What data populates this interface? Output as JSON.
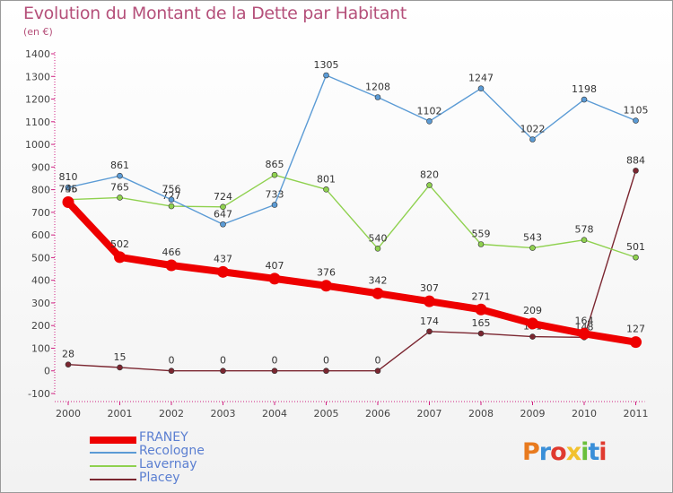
{
  "header": {
    "title": "Evolution du Montant de la Dette par Habitant",
    "subtitle": "(en €)"
  },
  "logo": {
    "text": "Proxiti",
    "colors": [
      "#e87a1e",
      "#3a8fd8",
      "#e03a2f",
      "#f2c12e",
      "#6bbf3a",
      "#3a8fd8",
      "#e03a2f"
    ]
  },
  "chart_data": {
    "type": "line",
    "categories": [
      "2000",
      "2001",
      "2002",
      "2003",
      "2004",
      "2005",
      "2006",
      "2007",
      "2008",
      "2009",
      "2010",
      "2011"
    ],
    "ylim": [
      -100,
      1400
    ],
    "yticks": [
      -100,
      0,
      100,
      200,
      300,
      400,
      500,
      600,
      700,
      800,
      900,
      1000,
      1100,
      1200,
      1300,
      1400
    ],
    "grid": false,
    "legend_position": "bottom-left",
    "series": [
      {
        "name": "Placey",
        "color": "#7b2630",
        "values": [
          28,
          15,
          0,
          0,
          0,
          0,
          0,
          174,
          165,
          151,
          148,
          884
        ],
        "labels": [
          "28",
          "15",
          "0",
          "0",
          "0",
          "0",
          "0",
          "174",
          "165",
          "151",
          "148",
          "884"
        ]
      },
      {
        "name": "Lavernay",
        "color": "#8fd14f",
        "values": [
          756,
          765,
          727,
          724,
          865,
          801,
          540,
          820,
          559,
          543,
          578,
          501
        ],
        "labels": [
          "756",
          "765",
          "727",
          "724",
          "865",
          "801",
          "540",
          "820",
          "559",
          "543",
          "578",
          "501"
        ]
      },
      {
        "name": "Recologne",
        "color": "#5b9bd5",
        "values": [
          810,
          861,
          756,
          647,
          733,
          1305,
          1208,
          1102,
          1247,
          1022,
          1198,
          1105
        ],
        "labels": [
          "810",
          "861",
          "756",
          "647",
          "733",
          "1305",
          "1208",
          "1102",
          "1247",
          "1022",
          "1198",
          "1105"
        ]
      },
      {
        "name": "FRANEY",
        "color": "#ee0000",
        "values": [
          745,
          502,
          466,
          437,
          407,
          376,
          342,
          307,
          271,
          209,
          164,
          127
        ],
        "labels": [
          "745",
          "502",
          "466",
          "437",
          "407",
          "376",
          "342",
          "307",
          "271",
          "209",
          "164",
          "127"
        ]
      }
    ]
  }
}
